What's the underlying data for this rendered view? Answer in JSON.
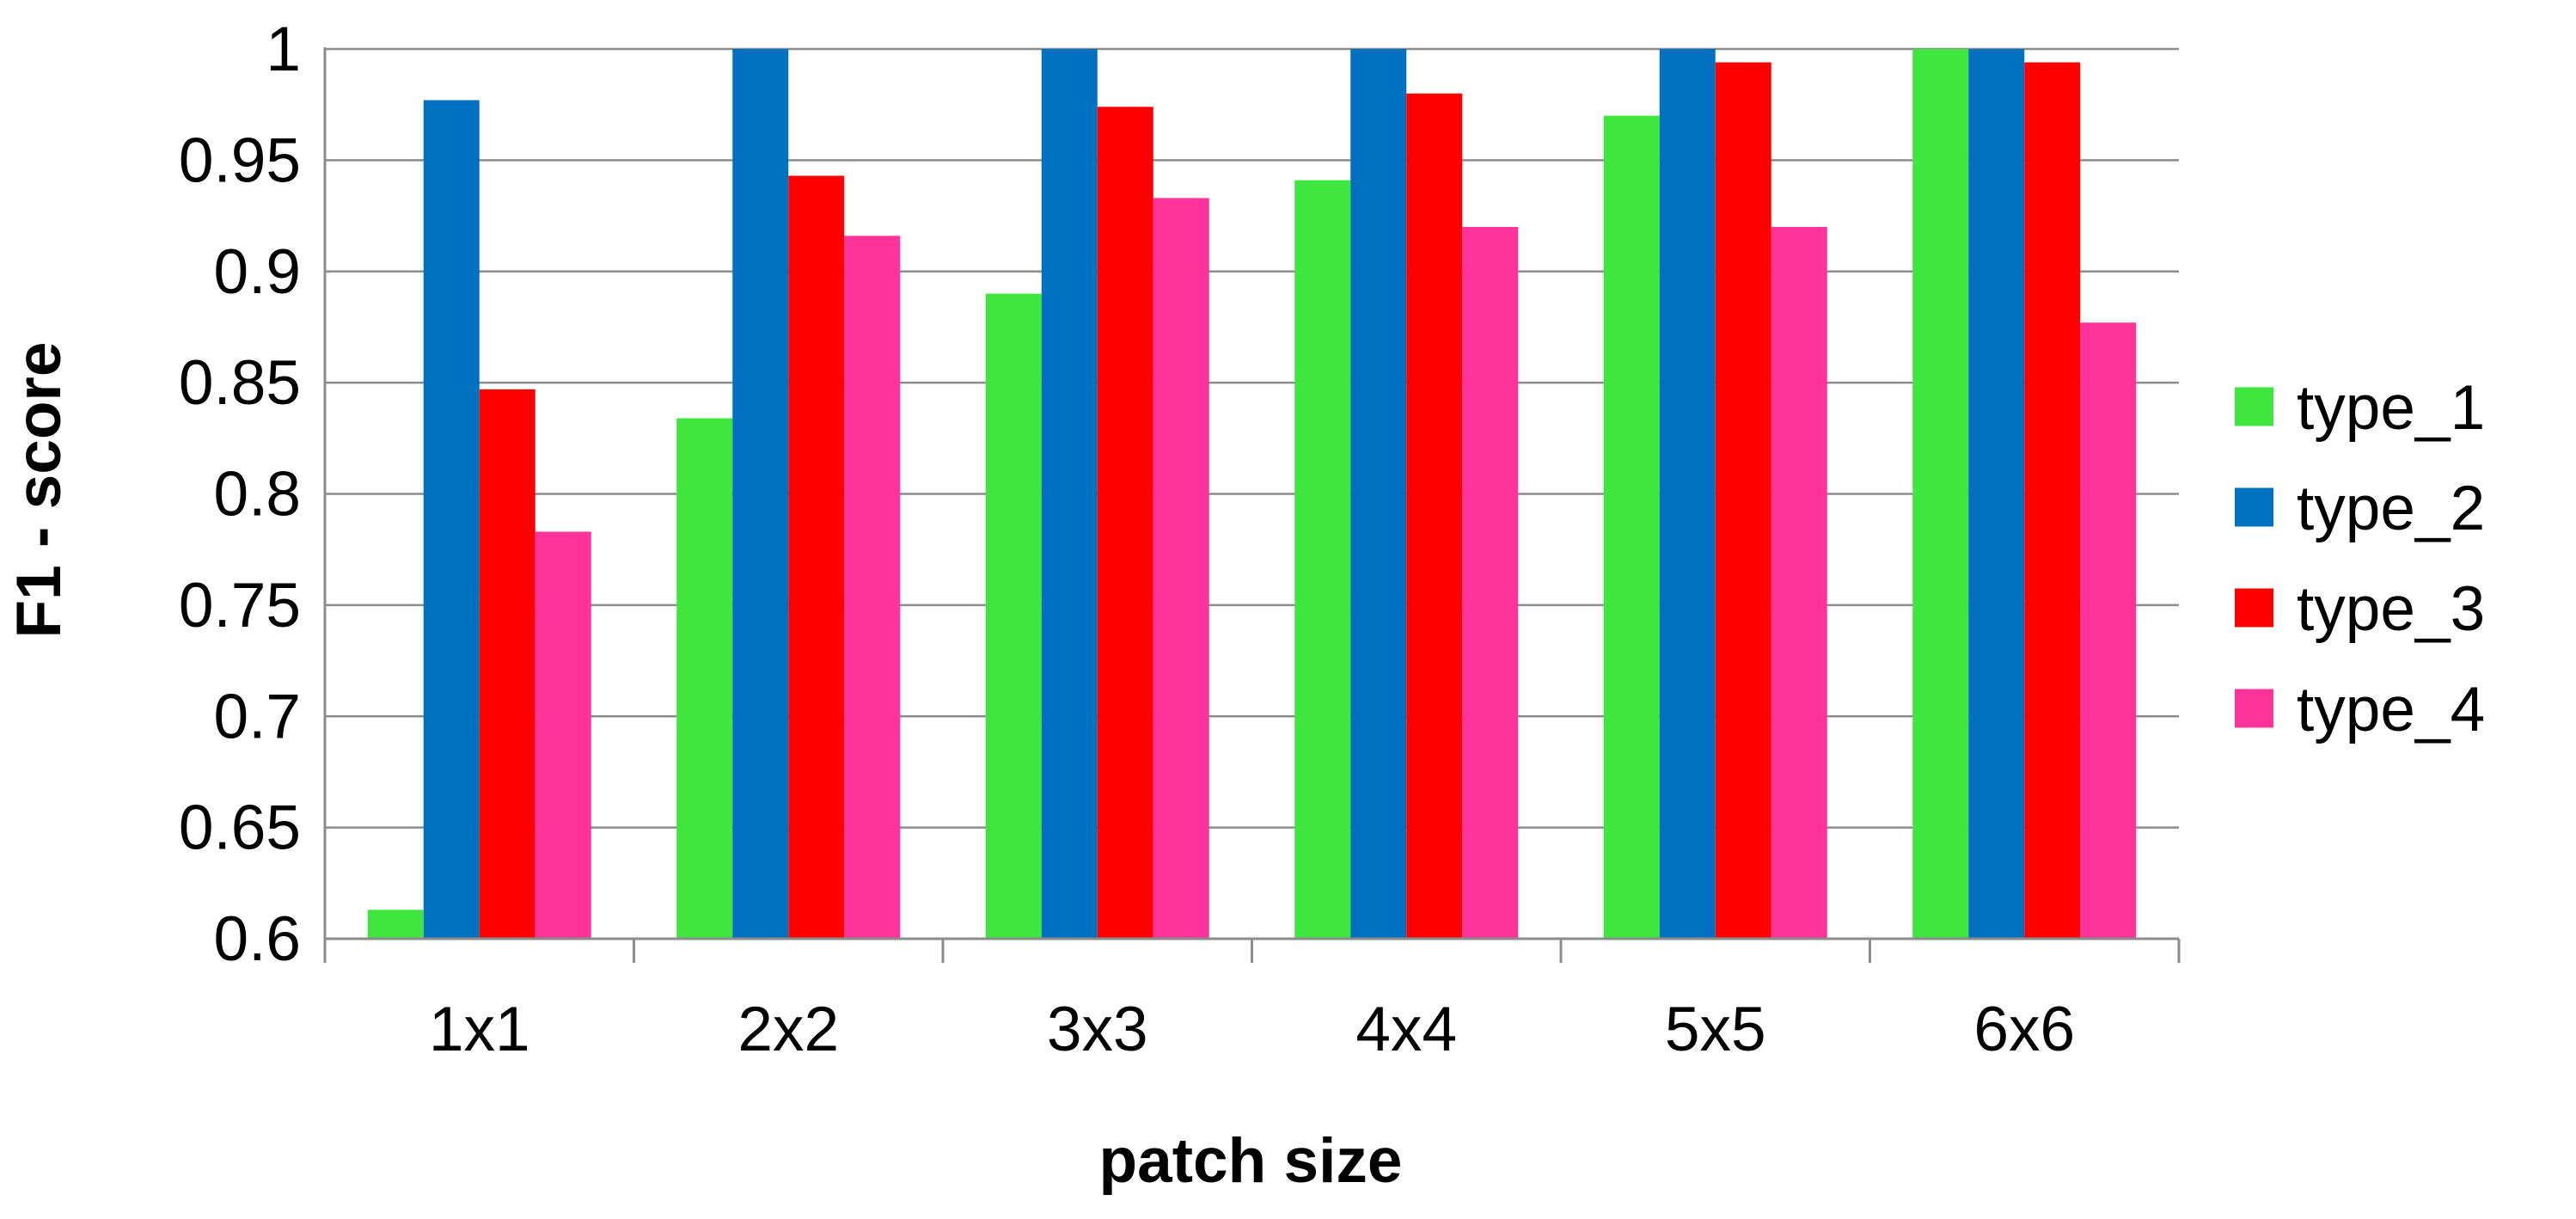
{
  "chart_data": {
    "type": "bar",
    "xlabel": "patch size",
    "ylabel": "F1 - score",
    "ylim": [
      0.6,
      1
    ],
    "yticks": [
      0.6,
      0.65,
      0.7,
      0.75,
      0.8,
      0.85,
      0.9,
      0.95,
      1
    ],
    "ytick_labels": [
      "0.6",
      "0.65",
      "0.7",
      "0.75",
      "0.8",
      "0.85",
      "0.9",
      "0.95",
      "1"
    ],
    "grid": true,
    "legend_position": "right",
    "categories": [
      "1x1",
      "2x2",
      "3x3",
      "4x4",
      "5x5",
      "6x6"
    ],
    "series": [
      {
        "name": "type_1",
        "color": "#3EE63E",
        "values": [
          0.613,
          0.834,
          0.89,
          0.941,
          0.97,
          1.0
        ]
      },
      {
        "name": "type_2",
        "color": "#0070C0",
        "values": [
          0.977,
          1.0,
          1.0,
          1.0,
          1.0,
          1.0
        ]
      },
      {
        "name": "type_3",
        "color": "#FF0000",
        "values": [
          0.847,
          0.943,
          0.974,
          0.98,
          0.994,
          0.994
        ]
      },
      {
        "name": "type_4",
        "color": "#FF3399",
        "values": [
          0.783,
          0.916,
          0.933,
          0.92,
          0.92,
          0.877
        ]
      }
    ]
  }
}
